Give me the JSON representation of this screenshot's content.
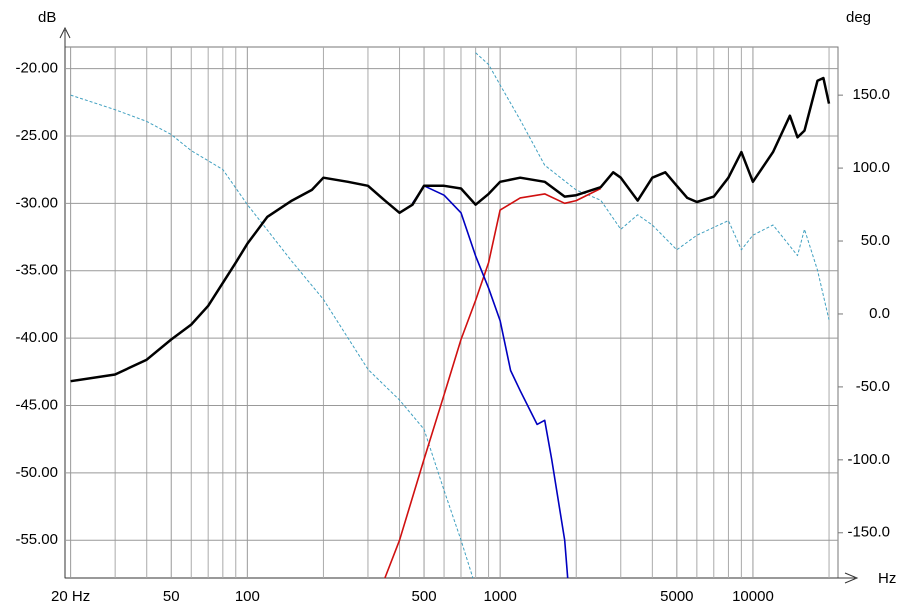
{
  "chart_data": {
    "type": "line",
    "y_label": "dB",
    "y2_label": "deg",
    "x_label": "Hz",
    "log_x": true,
    "grid": true,
    "xlim": [
      19,
      21700
    ],
    "ylim": [
      -57.8,
      -18.4
    ],
    "y2lim": [
      -181,
      183
    ],
    "xticks": [
      {
        "value": 20,
        "label": "20 Hz"
      },
      50,
      100,
      500,
      1000,
      5000,
      10000
    ],
    "xgrid": [
      30,
      40,
      60,
      70,
      80,
      90,
      200,
      300,
      400,
      600,
      700,
      800,
      900,
      2000,
      3000,
      4000,
      6000,
      7000,
      8000,
      9000,
      20000
    ],
    "yticks": [
      {
        "value": -20,
        "label": "-20.00"
      },
      {
        "value": -25,
        "label": "-25.00"
      },
      {
        "value": -30,
        "label": "-30.00"
      },
      {
        "value": -35,
        "label": "-35.00"
      },
      {
        "value": -40,
        "label": "-40.00"
      },
      {
        "value": -45,
        "label": "-45.00"
      },
      {
        "value": -50,
        "label": "-50.00"
      },
      {
        "value": -55,
        "label": "-55.00"
      }
    ],
    "y2ticks": [
      {
        "value": 150,
        "label": "150.0"
      },
      {
        "value": 100,
        "label": "100.0"
      },
      {
        "value": 50,
        "label": "50.0"
      },
      {
        "value": 0,
        "label": "0.0"
      },
      {
        "value": -50,
        "label": "-50.0"
      },
      {
        "value": -100,
        "label": "-100.0"
      },
      {
        "value": -150,
        "label": "-150.0"
      }
    ],
    "series": [
      {
        "color": "#000000",
        "width": 2.5,
        "x": [
          20,
          30,
          40,
          50,
          60,
          70,
          80,
          90,
          100,
          120,
          150,
          180,
          200,
          250,
          300,
          350,
          400,
          450,
          500,
          600,
          700,
          800,
          900,
          1000,
          1200,
          1500,
          1800,
          2000,
          2500,
          2800,
          3000,
          3500,
          4000,
          4500,
          5000,
          5500,
          6000,
          7000,
          8000,
          9000,
          10000,
          12000,
          14000,
          15000,
          16000,
          18000,
          19000,
          20000
        ],
        "values": [
          -43.2,
          -42.7,
          -41.6,
          -40.1,
          -39.0,
          -37.6,
          -35.9,
          -34.4,
          -33.0,
          -31.0,
          -29.8,
          -29.0,
          -28.1,
          -28.4,
          -28.7,
          -29.8,
          -30.7,
          -30.1,
          -28.7,
          -28.7,
          -28.9,
          -30.1,
          -29.3,
          -28.4,
          -28.1,
          -28.4,
          -29.5,
          -29.4,
          -28.8,
          -27.7,
          -28.1,
          -29.8,
          -28.1,
          -27.7,
          -28.7,
          -29.6,
          -29.9,
          -29.5,
          -28.1,
          -26.2,
          -28.4,
          -26.2,
          -23.5,
          -25.1,
          -24.6,
          -20.9,
          -20.7,
          -22.6
        ]
      },
      {
        "color": "#0000c0",
        "width": 1.6,
        "x": [
          450,
          500,
          600,
          700,
          800,
          900,
          1000,
          1100,
          1200,
          1400,
          1500,
          1600,
          1800,
          1850
        ],
        "values": [
          -30.0,
          -28.7,
          -29.4,
          -30.7,
          -33.9,
          -36.3,
          -38.7,
          -42.4,
          -43.9,
          -46.4,
          -46.1,
          -49.0,
          -55.0,
          -57.8
        ]
      },
      {
        "color": "#d01010",
        "width": 1.6,
        "x": [
          350,
          400,
          500,
          600,
          700,
          800,
          900,
          1000,
          1200,
          1500,
          1800,
          2000,
          2500
        ],
        "values": [
          -57.8,
          -55.0,
          -49.0,
          -44.2,
          -40.1,
          -37.2,
          -34.4,
          -30.5,
          -29.6,
          -29.3,
          -30.0,
          -29.8,
          -28.9
        ]
      },
      {
        "color": "#40a0c0",
        "width": 1,
        "dashed": true,
        "axis": "y2",
        "x": [
          20,
          30,
          40,
          50,
          60,
          80,
          100,
          150,
          200,
          300,
          400,
          500,
          600,
          700,
          780,
          790,
          800,
          900,
          1000,
          1200,
          1500,
          2000,
          2500,
          3000,
          3500,
          4000,
          5000,
          6000,
          8000,
          9000,
          10000,
          12000,
          15000,
          16000,
          18000,
          20000
        ],
        "values": [
          150,
          140,
          132,
          123,
          112,
          99,
          75,
          36,
          10,
          -38,
          -59,
          -79,
          -121,
          -155,
          -181,
          null,
          179,
          171,
          157,
          133,
          102,
          85,
          78,
          58,
          68,
          61,
          44,
          54,
          64,
          44,
          54,
          61,
          40,
          58,
          30,
          -4
        ]
      }
    ]
  }
}
